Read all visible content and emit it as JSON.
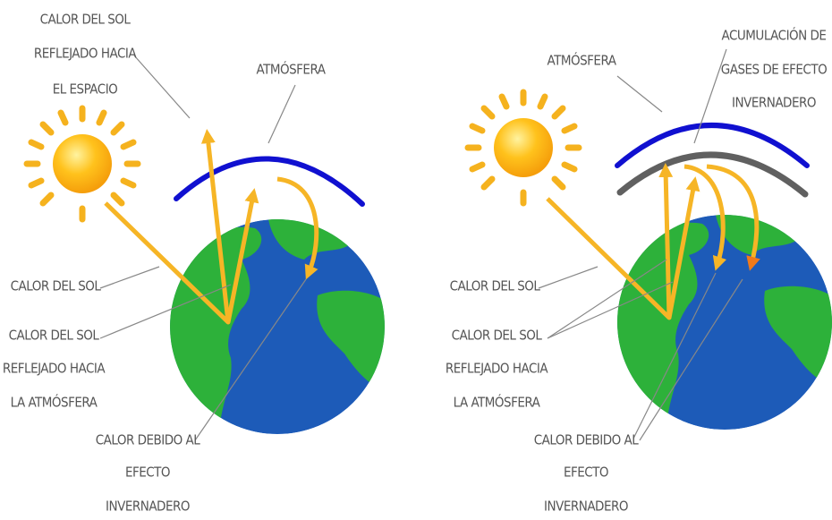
{
  "panels": [
    {
      "labels": [
        {
          "lines": [
            "CALOR DEL SOL",
            "REFLEJADO HACIA",
            "EL ESPACIO"
          ]
        },
        {
          "lines": [
            "ATMÓSFERA"
          ]
        },
        {
          "lines": [
            "CALOR DEL SOL"
          ]
        },
        {
          "lines": [
            "CALOR DEL SOL",
            "REFLEJADO HACIA",
            "LA ATMÓSFERA"
          ]
        },
        {
          "lines": [
            "CALOR DEBIDO AL",
            "EFECTO",
            "INVERNADERO"
          ]
        }
      ]
    },
    {
      "labels": [
        {
          "lines": [
            "ATMÓSFERA"
          ]
        },
        {
          "lines": [
            "ACUMULACIÓN DE",
            "GASES DE EFECTO",
            "INVERNADERO"
          ]
        },
        {
          "lines": [
            "CALOR DEL SOL"
          ]
        },
        {
          "lines": [
            "CALOR DEL SOL",
            "REFLEJADO HACIA",
            "LA ATMÓSFERA"
          ]
        },
        {
          "lines": [
            "CALOR DEBIDO AL",
            "EFECTO",
            "INVERNADERO"
          ]
        }
      ]
    }
  ]
}
